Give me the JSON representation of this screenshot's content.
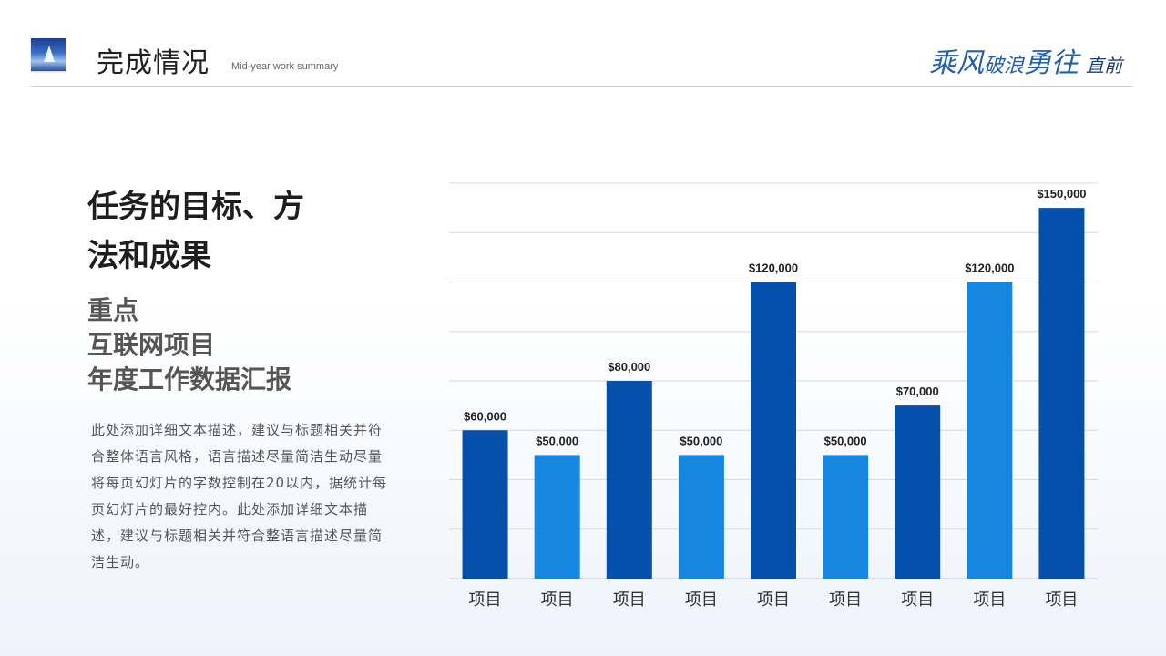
{
  "header": {
    "title": "完成情况",
    "subtitle": "Mid-year work summary",
    "slogan": {
      "part1": "乘风",
      "part2": "破浪",
      "part3": "勇往",
      "part4": "直前"
    }
  },
  "content": {
    "main_heading_line1": "任务的目标、方",
    "main_heading_line2": "法和成果",
    "sub_heading_line1": "重点",
    "sub_heading_line2": "互联网项目",
    "sub_heading_line3": "年度工作数据汇报",
    "description": "此处添加详细文本描述，建议与标题相关并符合整体语言风格，语言描述尽量简洁生动尽量将每页幻灯片的字数控制在20以内，据统计每页幻灯片的最好控内。此处添加详细文本描述，建议与标题相关并符合整语言描述尽量简洁生动。"
  },
  "colors": {
    "dark_blue": "#0450ab",
    "light_blue": "#1687e0",
    "grid": "#d9d9d9"
  },
  "chart_data": {
    "type": "bar",
    "categories": [
      "项目",
      "项目",
      "项目",
      "项目",
      "项目",
      "项目",
      "项目",
      "项目",
      "项目"
    ],
    "values": [
      60000,
      50000,
      80000,
      50000,
      120000,
      50000,
      70000,
      120000,
      150000
    ],
    "value_labels": [
      "$60,000",
      "$50,000",
      "$80,000",
      "$50,000",
      "$120,000",
      "$50,000",
      "$70,000",
      "$120,000",
      "$150,000"
    ],
    "bar_color_keys": [
      "dark_blue",
      "light_blue",
      "dark_blue",
      "light_blue",
      "dark_blue",
      "light_blue",
      "dark_blue",
      "light_blue",
      "dark_blue"
    ],
    "ylim": [
      0,
      160000
    ],
    "grid_step": 20000,
    "grid": true
  }
}
